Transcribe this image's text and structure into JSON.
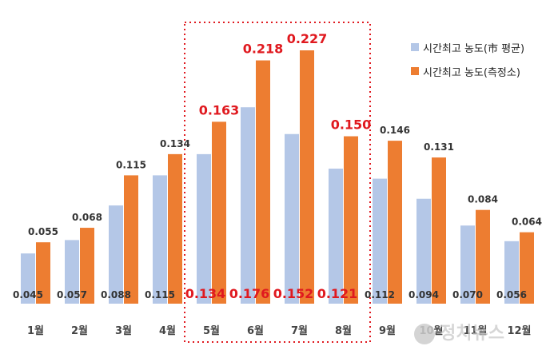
{
  "chart_data": {
    "type": "bar",
    "categories": [
      "1월",
      "2월",
      "3월",
      "4월",
      "5월",
      "6월",
      "7월",
      "8월",
      "9월",
      "10월",
      "11월",
      "12월"
    ],
    "series": [
      {
        "name": "시간최고 농도(市 평균)",
        "color": "#b4c7e7",
        "values": [
          0.045,
          0.057,
          0.088,
          0.115,
          0.134,
          0.176,
          0.152,
          0.121,
          0.112,
          0.094,
          0.07,
          0.056
        ]
      },
      {
        "name": "시간최고 농도(측정소)",
        "color": "#ed7d31",
        "values": [
          0.055,
          0.068,
          0.115,
          0.134,
          0.163,
          0.218,
          0.227,
          0.15,
          0.146,
          0.131,
          0.084,
          0.064
        ]
      }
    ],
    "labels_a": [
      "0.045",
      "0.057",
      "0.088",
      "0.115",
      "0.134",
      "0.176",
      "0.152",
      "0.121",
      "0.112",
      "0.094",
      "0.070",
      "0.056"
    ],
    "labels_b": [
      "0.055",
      "0.068",
      "0.115",
      "0.134",
      "0.163",
      "0.218",
      "0.227",
      "0.150",
      "0.146",
      "0.131",
      "0.084",
      "0.064"
    ],
    "highlight": {
      "months": [
        "5월",
        "6월",
        "7월",
        "8월"
      ],
      "color": "#e0191f"
    },
    "ylim": [
      0,
      0.24
    ],
    "grid": false,
    "legend_position": "top-right"
  },
  "watermark": "정치뉴스"
}
